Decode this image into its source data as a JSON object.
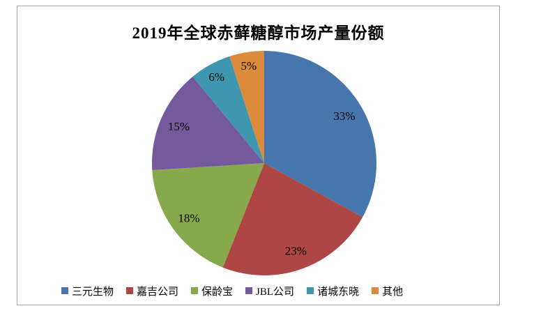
{
  "chart_data": {
    "type": "pie",
    "title": "2019年全球赤藓糖醇市场产量份额",
    "categories": [
      "三元生物",
      "嘉吉公司",
      "保龄宝",
      "JBL公司",
      "诸城东晓",
      "其他"
    ],
    "values": [
      33,
      23,
      18,
      15,
      6,
      5
    ],
    "labels": [
      "33%",
      "23%",
      "18%",
      "15%",
      "6%",
      "5%"
    ],
    "colors": [
      "#4676AC",
      "#AE4645",
      "#87A84D",
      "#75599D",
      "#3E96AF",
      "#DC8B3D"
    ],
    "start_angle_deg": 0,
    "direction": "clockwise",
    "legend_position": "bottom",
    "label_color": "#000000",
    "title_color": "#000000",
    "frame_border_color": "#A6A6A6",
    "background_color": "#FFFFFF"
  }
}
